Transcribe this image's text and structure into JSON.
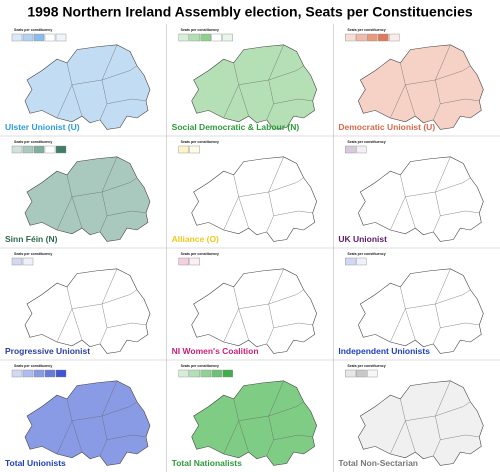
{
  "title": "1998 Northern Ireland Assembly election, Seats per Constituencies",
  "legend_title": "Seats per constituency",
  "panels": [
    {
      "label": "Ulster Unionist (U)",
      "color": "#2d9be0",
      "map_fill": "#c2dcf4",
      "swatches": [
        "#dbe9f8",
        "#b4d3f1",
        "#8cbceb",
        "#ffffff",
        "#eef4fb"
      ]
    },
    {
      "label": "Social Democratic & Labour (N)",
      "color": "#2f9a3a",
      "map_fill": "#b5e0b5",
      "swatches": [
        "#d7efd7",
        "#b2dfb2",
        "#8dd08d",
        "#ffffff",
        "#e8f5e8"
      ]
    },
    {
      "label": "Democratic Unionist (U)",
      "color": "#d86a4a",
      "map_fill": "#f6d2c6",
      "swatches": [
        "#f8ddd4",
        "#f0bba9",
        "#e8997e",
        "#e07a5a",
        "#fbece7"
      ]
    },
    {
      "label": "Sinn Féin (N)",
      "color": "#2d6a4a",
      "map_fill": "#a9c9bf",
      "swatches": [
        "#cfe3dc",
        "#a9c9bf",
        "#7eafa1",
        "#ffffff",
        "#3f7f6a"
      ]
    },
    {
      "label": "Alliance (O)",
      "color": "#f2c81e",
      "map_fill": "#ffffff",
      "swatches": [
        "#fdf5c8",
        "#fffbe6"
      ]
    },
    {
      "label": "UK Unionist",
      "color": "#5e1a6b",
      "map_fill": "#ffffff",
      "swatches": [
        "#d9c9dd",
        "#f4eef5"
      ]
    },
    {
      "label": "Progressive Unionist",
      "color": "#2b3fa0",
      "map_fill": "#ffffff",
      "swatches": [
        "#d4d8f0",
        "#eef0fa"
      ]
    },
    {
      "label": "NI Women's Coalition",
      "color": "#cc1f77",
      "map_fill": "#ffffff",
      "swatches": [
        "#f3cfe0",
        "#fbeef4"
      ]
    },
    {
      "label": "Independent Unionists",
      "color": "#1d3fbf",
      "map_fill": "#ffffff",
      "swatches": [
        "#d0d8f6",
        "#eef1fc"
      ]
    },
    {
      "label": "Total Unionists",
      "color": "#1d3fbf",
      "map_fill": "#8a9be6",
      "swatches": [
        "#d3d9f5",
        "#b0bcef",
        "#8a9be6",
        "#6679dc",
        "#3d55d0"
      ]
    },
    {
      "label": "Total Nationalists",
      "color": "#2f9a3a",
      "map_fill": "#7fcc85",
      "swatches": [
        "#d5eed7",
        "#b3e0b7",
        "#90d196",
        "#6cc274",
        "#3fae4b"
      ]
    },
    {
      "label": "Total Non-Sectarian",
      "color": "#777777",
      "map_fill": "#f0f0f0",
      "swatches": [
        "#e6e6e6",
        "#c8c8c8",
        "#f6f6f6"
      ]
    }
  ]
}
